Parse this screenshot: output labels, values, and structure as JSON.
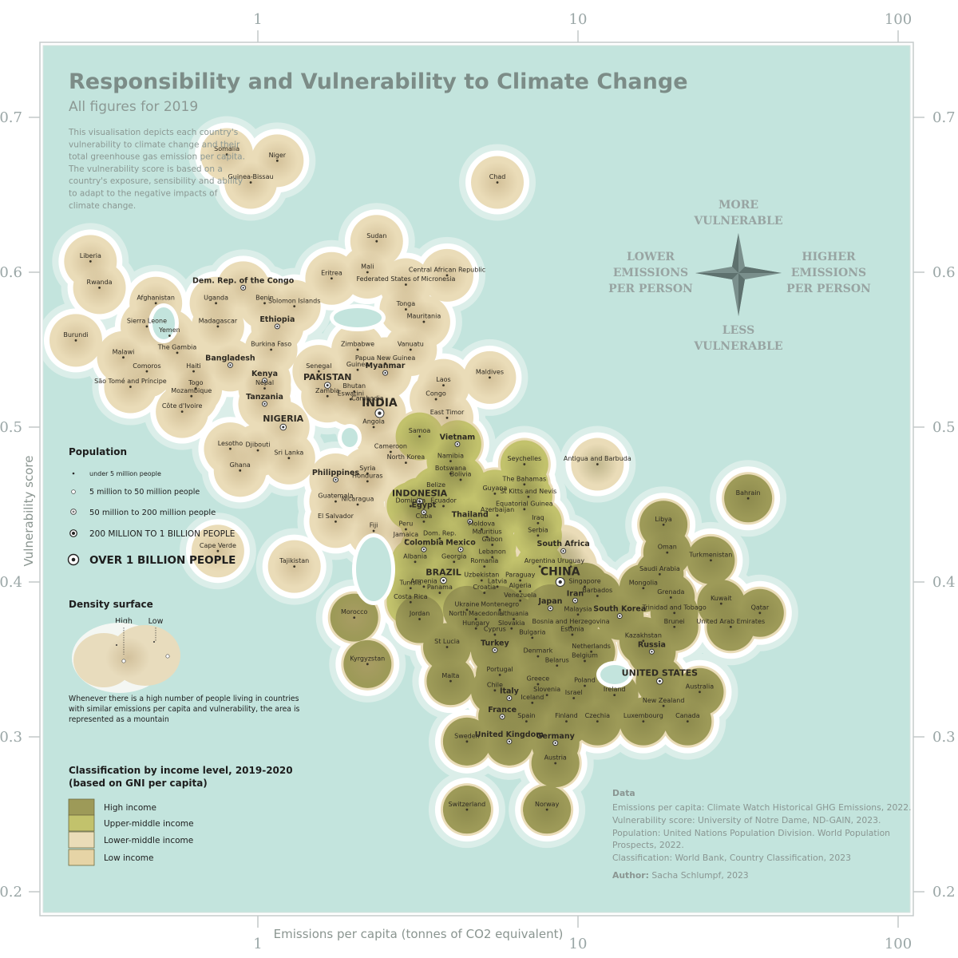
{
  "title": "Responsibility and Vulnerability to Climate Change",
  "subtitle": "All figures for 2019",
  "description": [
    "This visualisation depicts each country's",
    "vulnerability to climate change and their",
    "total greenhouse gas emission per capita.",
    "The vulnerability score is based on a",
    "country's exposure, sensibility and ability",
    "to adapt to the negative impacts of",
    "climate change."
  ],
  "compass": {
    "top": [
      "MORE",
      "VULNERABLE"
    ],
    "bottom": [
      "LESS",
      "VULNERABLE"
    ],
    "left": [
      "LOWER",
      "EMISSIONS",
      "PER PERSON"
    ],
    "right": [
      "HIGHER",
      "EMISSIONS",
      "PER PERSON"
    ]
  },
  "colors": {
    "sea": "#c3e4dd",
    "high_income": "#9d9a58",
    "upper_middle_income": "#c2c26c",
    "lower_middle_income": "#eadcb8",
    "low_income": "#e6d4a6"
  },
  "chart_data": {
    "type": "scatter",
    "title": "Responsibility and Vulnerability to Climate Change",
    "subtitle": "All figures for 2019",
    "xlabel": "Emissions per capita (tonnes of CO2 equivalent)",
    "ylabel": "Vulnerability score",
    "x_scale": "log",
    "xlim": [
      0.25,
      100
    ],
    "ylim": [
      0.19,
      0.73
    ],
    "x_ticks": [
      "1",
      "10",
      "100"
    ],
    "y_ticks": [
      "0.7",
      "0.6",
      "0.5",
      "0.4",
      "0.3",
      "0.2"
    ],
    "legend_placement": "left",
    "points": [
      {
        "n": "Somalia",
        "x": 0.8,
        "y": 0.676
      },
      {
        "n": "Niger",
        "x": 1.15,
        "y": 0.672
      },
      {
        "n": "Guinea-Bissau",
        "x": 0.95,
        "y": 0.658
      },
      {
        "n": "Chad",
        "x": 5.6,
        "y": 0.658
      },
      {
        "n": "Sudan",
        "x": 2.35,
        "y": 0.62
      },
      {
        "n": "Liberia",
        "x": 0.3,
        "y": 0.607
      },
      {
        "n": "Mali",
        "x": 2.2,
        "y": 0.6
      },
      {
        "n": "Eritrea",
        "x": 1.7,
        "y": 0.596
      },
      {
        "n": "Central African Republic",
        "x": 3.9,
        "y": 0.598
      },
      {
        "n": "Federated States of Micronesia",
        "x": 2.9,
        "y": 0.592
      },
      {
        "n": "Rwanda",
        "x": 0.32,
        "y": 0.59
      },
      {
        "n": "Dem. Rep. of the Congo",
        "x": 0.9,
        "y": 0.59
      },
      {
        "n": "Benin",
        "x": 1.05,
        "y": 0.58
      },
      {
        "n": "Solomon Islands",
        "x": 1.3,
        "y": 0.578
      },
      {
        "n": "Afghanistan",
        "x": 0.48,
        "y": 0.58
      },
      {
        "n": "Uganda",
        "x": 0.74,
        "y": 0.58
      },
      {
        "n": "Tonga",
        "x": 2.9,
        "y": 0.576
      },
      {
        "n": "Mauritania",
        "x": 3.3,
        "y": 0.568
      },
      {
        "n": "Sierra Leone",
        "x": 0.45,
        "y": 0.565
      },
      {
        "n": "Madagascar",
        "x": 0.75,
        "y": 0.565
      },
      {
        "n": "Ethiopia",
        "x": 1.15,
        "y": 0.565
      },
      {
        "n": "Yemen",
        "x": 0.53,
        "y": 0.559
      },
      {
        "n": "Burundi",
        "x": 0.27,
        "y": 0.556
      },
      {
        "n": "The Gambia",
        "x": 0.56,
        "y": 0.548
      },
      {
        "n": "Burkina Faso",
        "x": 1.1,
        "y": 0.55
      },
      {
        "n": "Zimbabwe",
        "x": 2.05,
        "y": 0.55
      },
      {
        "n": "Vanuatu",
        "x": 3.0,
        "y": 0.55
      },
      {
        "n": "Malawi",
        "x": 0.38,
        "y": 0.545
      },
      {
        "n": "Bangladesh",
        "x": 0.82,
        "y": 0.54
      },
      {
        "n": "Papua New Guinea",
        "x": 2.5,
        "y": 0.541
      },
      {
        "n": "Comoros",
        "x": 0.45,
        "y": 0.536
      },
      {
        "n": "Haiti",
        "x": 0.63,
        "y": 0.536
      },
      {
        "n": "Guinea",
        "x": 2.05,
        "y": 0.537
      },
      {
        "n": "Myanmar",
        "x": 2.5,
        "y": 0.535
      },
      {
        "n": "Senegal",
        "x": 1.55,
        "y": 0.536
      },
      {
        "n": "Kenya",
        "x": 1.05,
        "y": 0.53
      },
      {
        "n": "Maldives",
        "x": 5.3,
        "y": 0.532
      },
      {
        "n": "Laos",
        "x": 3.8,
        "y": 0.527
      },
      {
        "n": "São Tomé and Príncipe",
        "x": 0.4,
        "y": 0.526
      },
      {
        "n": "Togo",
        "x": 0.64,
        "y": 0.525
      },
      {
        "n": "Nepal",
        "x": 1.05,
        "y": 0.525
      },
      {
        "n": "Pakistan",
        "x": 1.65,
        "y": 0.527
      },
      {
        "n": "Bhutan",
        "x": 2.0,
        "y": 0.523
      },
      {
        "n": "Zambia",
        "x": 1.65,
        "y": 0.52
      },
      {
        "n": "Mozambique",
        "x": 0.62,
        "y": 0.52
      },
      {
        "n": "Eswatini",
        "x": 1.95,
        "y": 0.518
      },
      {
        "n": "Congo",
        "x": 3.6,
        "y": 0.518
      },
      {
        "n": "Tanzania",
        "x": 1.05,
        "y": 0.515
      },
      {
        "n": "Cambodia",
        "x": 2.2,
        "y": 0.515
      },
      {
        "n": "Côte d'Ivoire",
        "x": 0.58,
        "y": 0.51
      },
      {
        "n": "India",
        "x": 2.4,
        "y": 0.509
      },
      {
        "n": "East Timor",
        "x": 3.9,
        "y": 0.506
      },
      {
        "n": "Nigeria",
        "x": 1.2,
        "y": 0.5
      },
      {
        "n": "Angola",
        "x": 2.3,
        "y": 0.5
      },
      {
        "n": "Samoa",
        "x": 3.2,
        "y": 0.494
      },
      {
        "n": "Vietnam",
        "x": 4.2,
        "y": 0.489
      },
      {
        "n": "Lesotho",
        "x": 0.82,
        "y": 0.486
      },
      {
        "n": "Djibouti",
        "x": 1.0,
        "y": 0.485
      },
      {
        "n": "Cameroon",
        "x": 2.6,
        "y": 0.484
      },
      {
        "n": "Sri Lanka",
        "x": 1.25,
        "y": 0.48
      },
      {
        "n": "Namibia",
        "x": 4.0,
        "y": 0.478
      },
      {
        "n": "North Korea",
        "x": 2.9,
        "y": 0.477
      },
      {
        "n": "Seychelles",
        "x": 6.8,
        "y": 0.476
      },
      {
        "n": "Antigua and Barbuda",
        "x": 11.5,
        "y": 0.476
      },
      {
        "n": "Ghana",
        "x": 0.88,
        "y": 0.472
      },
      {
        "n": "Botswana",
        "x": 4.0,
        "y": 0.47
      },
      {
        "n": "Syria",
        "x": 2.2,
        "y": 0.47
      },
      {
        "n": "Philippines",
        "x": 1.75,
        "y": 0.466
      },
      {
        "n": "Honduras",
        "x": 2.2,
        "y": 0.465
      },
      {
        "n": "Bolivia",
        "x": 4.3,
        "y": 0.466
      },
      {
        "n": "The Bahamas",
        "x": 6.8,
        "y": 0.463
      },
      {
        "n": "Belize",
        "x": 3.6,
        "y": 0.459
      },
      {
        "n": "Guyana",
        "x": 5.5,
        "y": 0.457
      },
      {
        "n": "St Kitts and Nevis",
        "x": 7.0,
        "y": 0.455
      },
      {
        "n": "Bahrain",
        "x": 34,
        "y": 0.454
      },
      {
        "n": "Indonesia",
        "x": 3.2,
        "y": 0.452
      },
      {
        "n": "Guatemala",
        "x": 1.75,
        "y": 0.452
      },
      {
        "n": "Nicaragua",
        "x": 2.05,
        "y": 0.45
      },
      {
        "n": "Dominica",
        "x": 3.0,
        "y": 0.449
      },
      {
        "n": "Ecuador",
        "x": 3.8,
        "y": 0.449
      },
      {
        "n": "Equatorial Guinea",
        "x": 6.8,
        "y": 0.447
      },
      {
        "n": "Egypt",
        "x": 3.3,
        "y": 0.445
      },
      {
        "n": "Azerbaijan",
        "x": 5.6,
        "y": 0.443
      },
      {
        "n": "El Salvador",
        "x": 1.75,
        "y": 0.439
      },
      {
        "n": "Cuba",
        "x": 3.3,
        "y": 0.439
      },
      {
        "n": "Thailand",
        "x": 4.6,
        "y": 0.439
      },
      {
        "n": "Iraq",
        "x": 7.5,
        "y": 0.438
      },
      {
        "n": "Libya",
        "x": 18.5,
        "y": 0.437
      },
      {
        "n": "Fiji",
        "x": 2.3,
        "y": 0.433
      },
      {
        "n": "Peru",
        "x": 2.9,
        "y": 0.434
      },
      {
        "n": "Moldova",
        "x": 5.0,
        "y": 0.434
      },
      {
        "n": "Serbia",
        "x": 7.5,
        "y": 0.43
      },
      {
        "n": "Dom. Rep.",
        "x": 3.7,
        "y": 0.428
      },
      {
        "n": "Mauritius",
        "x": 5.2,
        "y": 0.429
      },
      {
        "n": "Jamaica",
        "x": 2.9,
        "y": 0.427
      },
      {
        "n": "Gabon",
        "x": 5.4,
        "y": 0.424
      },
      {
        "n": "Mexico",
        "x": 4.3,
        "y": 0.421
      },
      {
        "n": "Colombia",
        "x": 3.3,
        "y": 0.421
      },
      {
        "n": "South Africa",
        "x": 9.0,
        "y": 0.42
      },
      {
        "n": "Oman",
        "x": 19,
        "y": 0.419
      },
      {
        "n": "Cape Verde",
        "x": 0.75,
        "y": 0.42
      },
      {
        "n": "Lebanon",
        "x": 5.4,
        "y": 0.416
      },
      {
        "n": "Turkmenistan",
        "x": 26,
        "y": 0.414
      },
      {
        "n": "Albania",
        "x": 3.1,
        "y": 0.413
      },
      {
        "n": "Georgia",
        "x": 4.1,
        "y": 0.413
      },
      {
        "n": "Romania",
        "x": 5.1,
        "y": 0.41
      },
      {
        "n": "Argentina",
        "x": 7.6,
        "y": 0.41
      },
      {
        "n": "Uruguay",
        "x": 9.5,
        "y": 0.41
      },
      {
        "n": "Tajikistan",
        "x": 1.3,
        "y": 0.41
      },
      {
        "n": "Saudi Arabia",
        "x": 18,
        "y": 0.405
      },
      {
        "n": "Brazil",
        "x": 3.8,
        "y": 0.401
      },
      {
        "n": "Uzbekistan",
        "x": 5.0,
        "y": 0.401
      },
      {
        "n": "Paraguay",
        "x": 6.6,
        "y": 0.401
      },
      {
        "n": "China",
        "x": 8.8,
        "y": 0.4
      },
      {
        "n": "Armenia",
        "x": 3.3,
        "y": 0.397
      },
      {
        "n": "Latvia",
        "x": 5.6,
        "y": 0.397
      },
      {
        "n": "Singapore",
        "x": 10.5,
        "y": 0.397
      },
      {
        "n": "Mongolia",
        "x": 16,
        "y": 0.396
      },
      {
        "n": "Tunisia",
        "x": 3.0,
        "y": 0.396
      },
      {
        "n": "Panama",
        "x": 3.7,
        "y": 0.393
      },
      {
        "n": "Croatia",
        "x": 5.1,
        "y": 0.393
      },
      {
        "n": "Algeria",
        "x": 6.6,
        "y": 0.394
      },
      {
        "n": "Barbados",
        "x": 11.5,
        "y": 0.391
      },
      {
        "n": "Grenada",
        "x": 19.5,
        "y": 0.39
      },
      {
        "n": "Iran",
        "x": 9.8,
        "y": 0.388
      },
      {
        "n": "Costa Rica",
        "x": 3.0,
        "y": 0.387
      },
      {
        "n": "Venezuela",
        "x": 6.6,
        "y": 0.388
      },
      {
        "n": "Japan",
        "x": 8.2,
        "y": 0.383
      },
      {
        "n": "Kuwait",
        "x": 28,
        "y": 0.386
      },
      {
        "n": "Ukraine",
        "x": 4.5,
        "y": 0.382
      },
      {
        "n": "Montenegro",
        "x": 5.7,
        "y": 0.382
      },
      {
        "n": "Malaysia",
        "x": 10,
        "y": 0.379
      },
      {
        "n": "South Korea",
        "x": 13.5,
        "y": 0.378
      },
      {
        "n": "Trinidad and Tobago",
        "x": 20,
        "y": 0.38
      },
      {
        "n": "Qatar",
        "x": 37,
        "y": 0.38
      },
      {
        "n": "Jordan",
        "x": 3.2,
        "y": 0.376
      },
      {
        "n": "North Macedonia",
        "x": 4.8,
        "y": 0.376
      },
      {
        "n": "Lithuania",
        "x": 6.3,
        "y": 0.376
      },
      {
        "n": "Morocco",
        "x": 2.0,
        "y": 0.377
      },
      {
        "n": "Bosnia and Herzegovina",
        "x": 9.5,
        "y": 0.371
      },
      {
        "n": "Hungary",
        "x": 4.8,
        "y": 0.37
      },
      {
        "n": "Slovakia",
        "x": 6.2,
        "y": 0.37
      },
      {
        "n": "Brunei",
        "x": 20,
        "y": 0.371
      },
      {
        "n": "United Arab Emirates",
        "x": 30,
        "y": 0.371
      },
      {
        "n": "Estonia",
        "x": 9.6,
        "y": 0.366
      },
      {
        "n": "Cyprus",
        "x": 5.5,
        "y": 0.366
      },
      {
        "n": "Bulgaria",
        "x": 7.2,
        "y": 0.364
      },
      {
        "n": "Kazakhstan",
        "x": 16,
        "y": 0.362
      },
      {
        "n": "St Lucia",
        "x": 3.9,
        "y": 0.358
      },
      {
        "n": "Turkey",
        "x": 5.5,
        "y": 0.356
      },
      {
        "n": "Netherlands",
        "x": 11,
        "y": 0.355
      },
      {
        "n": "Russia",
        "x": 17,
        "y": 0.355
      },
      {
        "n": "Denmark",
        "x": 7.5,
        "y": 0.352
      },
      {
        "n": "Belgium",
        "x": 10.5,
        "y": 0.349
      },
      {
        "n": "Kyrgyzstan",
        "x": 2.2,
        "y": 0.347
      },
      {
        "n": "Belarus",
        "x": 8.6,
        "y": 0.346
      },
      {
        "n": "Portugal",
        "x": 5.7,
        "y": 0.34
      },
      {
        "n": "United States",
        "x": 18,
        "y": 0.336
      },
      {
        "n": "Malta",
        "x": 4.0,
        "y": 0.336
      },
      {
        "n": "Greece",
        "x": 7.5,
        "y": 0.334
      },
      {
        "n": "Poland",
        "x": 10.5,
        "y": 0.333
      },
      {
        "n": "Chile",
        "x": 5.5,
        "y": 0.33
      },
      {
        "n": "Australia",
        "x": 24,
        "y": 0.329
      },
      {
        "n": "Slovenia",
        "x": 8.0,
        "y": 0.327
      },
      {
        "n": "Ireland",
        "x": 13,
        "y": 0.327
      },
      {
        "n": "Italy",
        "x": 6.1,
        "y": 0.325
      },
      {
        "n": "Israel",
        "x": 9.7,
        "y": 0.325
      },
      {
        "n": "Iceland",
        "x": 7.2,
        "y": 0.322
      },
      {
        "n": "New Zealand",
        "x": 18.5,
        "y": 0.32
      },
      {
        "n": "France",
        "x": 5.8,
        "y": 0.313
      },
      {
        "n": "Spain",
        "x": 6.9,
        "y": 0.31
      },
      {
        "n": "Finland",
        "x": 9.2,
        "y": 0.31
      },
      {
        "n": "Czechia",
        "x": 11.5,
        "y": 0.31
      },
      {
        "n": "Luxembourg",
        "x": 16,
        "y": 0.31
      },
      {
        "n": "Canada",
        "x": 22,
        "y": 0.31
      },
      {
        "n": "Sweden",
        "x": 4.5,
        "y": 0.297
      },
      {
        "n": "United Kingdom",
        "x": 6.1,
        "y": 0.297
      },
      {
        "n": "Germany",
        "x": 8.5,
        "y": 0.296
      },
      {
        "n": "Austria",
        "x": 8.5,
        "y": 0.283
      },
      {
        "n": "Switzerland",
        "x": 4.5,
        "y": 0.253
      },
      {
        "n": "Norway",
        "x": 8.0,
        "y": 0.253
      }
    ]
  },
  "legend": {
    "population_title": "Population",
    "population_items": [
      "under 5 million people",
      "5 million to 50 million people",
      "50 million to 200 million people",
      "200 MILLION TO 1 BILLION PEOPLE",
      "OVER 1 BILLION PEOPLE"
    ],
    "density_title": "Density surface",
    "density_high": "High",
    "density_low": "Low",
    "density_note": [
      "Whenever there is a high number of people living in countries",
      "with similar emissions per capita and vulnerability, the area is",
      "represented as a mountain"
    ],
    "income_title": [
      "Classification by income level, 2019-2020",
      "(based on GNI per capita)"
    ],
    "income_items": [
      "High income",
      "Upper-middle income",
      "Lower-middle income",
      "Low income"
    ]
  },
  "sources": {
    "heading": "Data",
    "lines": [
      "Emissions per capita: Climate Watch Historical GHG Emissions, 2022.",
      "Vulnerability score: University of Notre Dame, ND-GAIN, 2023.",
      "Population: United Nations Population Division. World Population",
      "Prospects, 2022.",
      "Classification: World Bank, Country Classification, 2023"
    ],
    "author_label": "Author:",
    "author": "Sacha Schlumpf, 2023"
  }
}
